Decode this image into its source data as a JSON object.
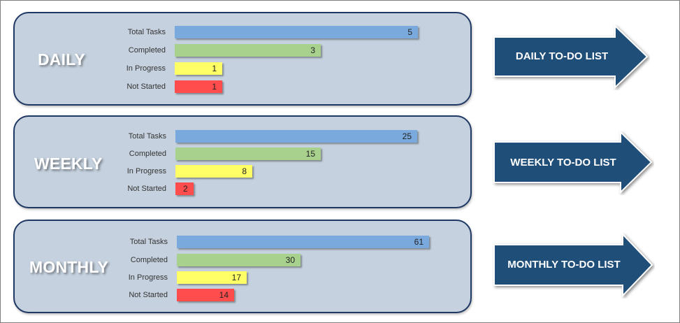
{
  "panels": [
    {
      "title": "DAILY",
      "rows": [
        {
          "label": "Total Tasks",
          "value": 5
        },
        {
          "label": "Completed",
          "value": 3
        },
        {
          "label": "In Progress",
          "value": 1
        },
        {
          "label": "Not Started",
          "value": 1
        }
      ],
      "button": "DAILY TO-DO LIST"
    },
    {
      "title": "WEEKLY",
      "rows": [
        {
          "label": "Total Tasks",
          "value": 25
        },
        {
          "label": "Completed",
          "value": 15
        },
        {
          "label": "In Progress",
          "value": 8
        },
        {
          "label": "Not Started",
          "value": 2
        }
      ],
      "button": "WEEKLY TO-DO LIST"
    },
    {
      "title": "MONTHLY",
      "rows": [
        {
          "label": "Total Tasks",
          "value": 61
        },
        {
          "label": "Completed",
          "value": 30
        },
        {
          "label": "In Progress",
          "value": 17
        },
        {
          "label": "Not Started",
          "value": 14
        }
      ],
      "button": "MONTHLY TO-DO LIST"
    }
  ],
  "colors": {
    "total": "#7aa9dd",
    "completed": "#a9d18e",
    "in_progress": "#ffff66",
    "not_started": "#ff4d4d",
    "panel_bg": "#c5d1de",
    "panel_border": "#1f3864",
    "arrow_fill": "#1f4e79"
  }
}
